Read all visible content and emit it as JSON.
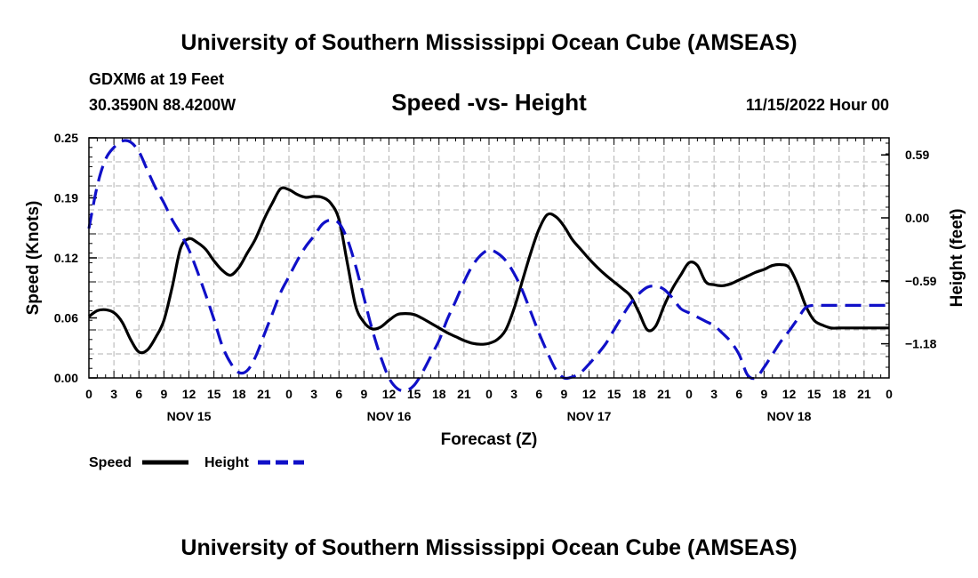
{
  "header": {
    "title": "University of Southern Mississippi Ocean Cube (AMSEAS)",
    "station": "GDXM6 at 19 Feet",
    "coords": "30.3590N  88.4200W",
    "plot_title": "Speed -vs- Height",
    "datetime": "11/15/2022 Hour 00"
  },
  "footer": {
    "title": "University of Southern Mississippi Ocean Cube (AMSEAS)"
  },
  "colors": {
    "speed": "#000000",
    "height": "#1010c8",
    "grid": "#b0b0b0"
  },
  "chart_data": {
    "type": "line",
    "title": "Speed -vs- Height",
    "xlabel": "Forecast (Z)",
    "ylabel_left": "Speed (Knots)",
    "ylabel_right": "Height (feet)",
    "xlim": [
      0,
      96
    ],
    "ylim_left": [
      0,
      0.25
    ],
    "ylim_right": [
      -1.5,
      0.75
    ],
    "x_tick_labels": [
      "0",
      "3",
      "6",
      "9",
      "12",
      "15",
      "18",
      "21",
      "0",
      "3",
      "6",
      "9",
      "12",
      "15",
      "18",
      "21",
      "0",
      "3",
      "6",
      "9",
      "12",
      "15",
      "18",
      "21",
      "0",
      "3",
      "6",
      "9",
      "12",
      "15",
      "18",
      "21",
      "0"
    ],
    "day_labels": [
      "NOV 15",
      "NOV 16",
      "NOV 17",
      "NOV 18"
    ],
    "left_tick_labels": [
      "0.00",
      "0.06",
      "0.12",
      "0.19",
      "0.25"
    ],
    "right_tick_labels": [
      "0.59",
      "0.00",
      "−0.59",
      "−1.18"
    ],
    "legend": [
      "Speed",
      "Height"
    ],
    "grid": true,
    "series": [
      {
        "name": "Speed",
        "axis": "left",
        "style": "solid",
        "x": [
          0,
          1,
          2,
          3,
          4,
          5,
          6,
          7,
          8,
          9,
          10,
          11,
          12,
          13,
          14,
          15,
          16,
          17,
          18,
          19,
          20,
          21,
          22,
          23,
          24,
          25,
          26,
          27,
          28,
          29,
          30,
          31,
          32,
          33,
          34,
          35,
          36,
          37,
          38,
          39,
          40,
          41,
          42,
          43,
          44,
          45,
          46,
          47,
          48,
          49,
          50,
          51,
          52,
          53,
          54,
          55,
          56,
          57,
          58,
          59,
          60,
          61,
          62,
          63,
          64,
          65,
          66,
          67,
          68,
          69,
          70,
          71,
          72,
          73,
          74,
          75,
          76,
          77,
          78,
          79,
          80,
          81,
          82,
          83,
          84,
          85,
          86,
          87,
          88,
          89,
          90,
          91,
          92,
          93,
          94,
          95,
          96
        ],
        "values": [
          0.064,
          0.07,
          0.071,
          0.068,
          0.058,
          0.04,
          0.027,
          0.029,
          0.042,
          0.06,
          0.095,
          0.135,
          0.145,
          0.141,
          0.134,
          0.122,
          0.112,
          0.107,
          0.115,
          0.13,
          0.145,
          0.165,
          0.182,
          0.197,
          0.196,
          0.191,
          0.188,
          0.189,
          0.188,
          0.182,
          0.165,
          0.12,
          0.075,
          0.058,
          0.051,
          0.053,
          0.06,
          0.066,
          0.067,
          0.066,
          0.062,
          0.057,
          0.052,
          0.047,
          0.043,
          0.039,
          0.036,
          0.035,
          0.036,
          0.04,
          0.05,
          0.072,
          0.101,
          0.13,
          0.155,
          0.17,
          0.168,
          0.158,
          0.144,
          0.134,
          0.124,
          0.115,
          0.107,
          0.1,
          0.093,
          0.085,
          0.068,
          0.05,
          0.054,
          0.075,
          0.093,
          0.107,
          0.12,
          0.117,
          0.1,
          0.097,
          0.096,
          0.098,
          0.102,
          0.106,
          0.11,
          0.113,
          0.117,
          0.118,
          0.115,
          0.098,
          0.075,
          0.06,
          0.055,
          0.052,
          0.052,
          0.052,
          0.052,
          0.052,
          0.052,
          0.052,
          0.052
        ]
      },
      {
        "name": "Height",
        "axis": "right",
        "style": "dashed",
        "x": [
          0,
          1,
          2,
          3,
          4,
          5,
          6,
          7,
          8,
          9,
          10,
          11,
          12,
          13,
          14,
          15,
          16,
          17,
          18,
          19,
          20,
          21,
          22,
          23,
          24,
          25,
          26,
          27,
          28,
          29,
          30,
          31,
          32,
          33,
          34,
          35,
          36,
          37,
          38,
          39,
          40,
          41,
          42,
          43,
          44,
          45,
          46,
          47,
          48,
          49,
          50,
          51,
          52,
          53,
          54,
          55,
          56,
          57,
          58,
          59,
          60,
          61,
          62,
          63,
          64,
          65,
          66,
          67,
          68,
          69,
          70,
          71,
          72,
          73,
          74,
          75,
          76,
          77,
          78,
          79,
          80,
          81,
          82,
          83,
          84,
          85,
          86,
          87,
          88,
          89,
          90,
          91,
          92,
          93,
          94,
          95,
          96
        ],
        "values": [
          -0.1,
          0.3,
          0.55,
          0.66,
          0.72,
          0.71,
          0.62,
          0.45,
          0.28,
          0.14,
          -0.02,
          -0.15,
          -0.3,
          -0.5,
          -0.72,
          -0.95,
          -1.2,
          -1.36,
          -1.45,
          -1.43,
          -1.3,
          -1.1,
          -0.9,
          -0.7,
          -0.55,
          -0.4,
          -0.27,
          -0.17,
          -0.06,
          -0.02,
          -0.05,
          -0.2,
          -0.45,
          -0.75,
          -1.05,
          -1.3,
          -1.5,
          -1.6,
          -1.62,
          -1.57,
          -1.45,
          -1.3,
          -1.15,
          -0.95,
          -0.78,
          -0.6,
          -0.45,
          -0.35,
          -0.3,
          -0.33,
          -0.4,
          -0.52,
          -0.68,
          -0.88,
          -1.08,
          -1.26,
          -1.42,
          -1.5,
          -1.49,
          -1.45,
          -1.37,
          -1.28,
          -1.18,
          -1.05,
          -0.92,
          -0.8,
          -0.71,
          -0.65,
          -0.64,
          -0.67,
          -0.75,
          -0.85,
          -0.89,
          -0.93,
          -0.97,
          -1.01,
          -1.08,
          -1.16,
          -1.28,
          -1.47,
          -1.5,
          -1.4,
          -1.28,
          -1.16,
          -1.06,
          -0.95,
          -0.84,
          -0.82,
          -0.82,
          -0.82,
          -0.82,
          -0.82,
          -0.82,
          -0.82,
          -0.82,
          -0.82,
          -0.82
        ]
      }
    ]
  }
}
